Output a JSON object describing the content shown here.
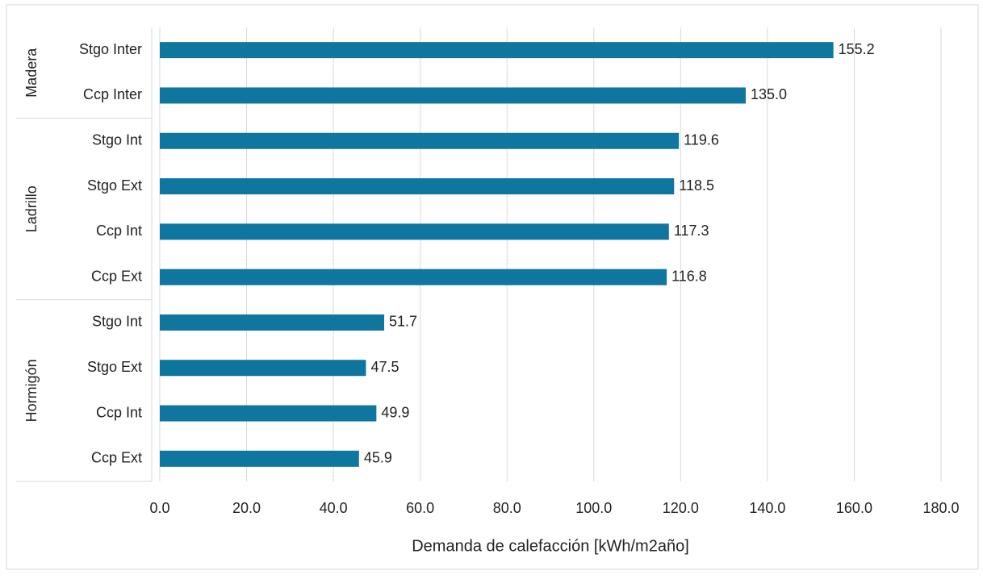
{
  "chart_data": {
    "type": "bar",
    "orientation": "horizontal",
    "color": "#0f76a0",
    "grid": true,
    "xlabel": "Demanda de calefacción [kWh/m2año]",
    "groups": [
      {
        "name": "Madera",
        "categories": [
          "Stgo Inter",
          "Ccp Inter"
        ],
        "values": [
          155.2,
          135.0
        ],
        "value_labels": [
          "155.2",
          "135.0"
        ]
      },
      {
        "name": "Ladrillo",
        "categories": [
          "Stgo Int",
          "Stgo Ext",
          "Ccp Int",
          "Ccp Ext"
        ],
        "values": [
          119.6,
          118.5,
          117.3,
          116.8
        ],
        "value_labels": [
          "119.6",
          "118.5",
          "117.3",
          "116.8"
        ]
      },
      {
        "name": "Hormigón",
        "categories": [
          "Stgo Int",
          "Stgo Ext",
          "Ccp Int",
          "Ccp Ext"
        ],
        "values": [
          51.7,
          47.5,
          49.9,
          45.9
        ],
        "value_labels": [
          "51.7",
          "47.5",
          "49.9",
          "45.9"
        ]
      }
    ],
    "xlim": [
      0,
      180
    ],
    "xticks": [
      {
        "value": 0,
        "label": "0.0"
      },
      {
        "value": 20,
        "label": "20.0"
      },
      {
        "value": 40,
        "label": "40.0"
      },
      {
        "value": 60,
        "label": "60.0"
      },
      {
        "value": 80,
        "label": "80.0"
      },
      {
        "value": 100,
        "label": "100.0"
      },
      {
        "value": 120,
        "label": "120.0"
      },
      {
        "value": 140,
        "label": "140.0"
      },
      {
        "value": 160,
        "label": "160.0"
      },
      {
        "value": 180,
        "label": "180.0"
      }
    ]
  }
}
